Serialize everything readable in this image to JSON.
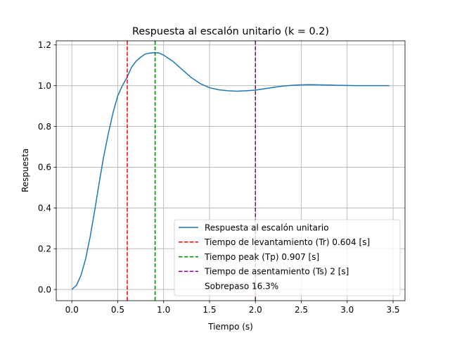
{
  "chart_data": {
    "type": "line",
    "title": "Respuesta al escalón unitario (k = 0.2)",
    "xlabel": "Tiempo (s)",
    "ylabel": "Respuesta",
    "xlim": [
      -0.17,
      3.63
    ],
    "ylim": [
      -0.055,
      1.22
    ],
    "grid": true,
    "legend_position": "lower right",
    "x_ticks": [
      0.0,
      0.5,
      1.0,
      1.5,
      2.0,
      2.5,
      3.0,
      3.5
    ],
    "x_tick_labels": [
      "0.0",
      "0.5",
      "1.0",
      "1.5",
      "2.0",
      "2.5",
      "3.0",
      "3.5"
    ],
    "y_ticks": [
      0.0,
      0.2,
      0.4,
      0.6,
      0.8,
      1.0,
      1.2
    ],
    "y_tick_labels": [
      "0.0",
      "0.2",
      "0.4",
      "0.6",
      "0.8",
      "1.0",
      "1.2"
    ],
    "series": [
      {
        "name": "Respuesta al escalón unitario",
        "color": "#1f77b4",
        "style": "solid",
        "x": [
          0,
          0.05,
          0.1,
          0.15,
          0.2,
          0.25,
          0.3,
          0.35,
          0.4,
          0.45,
          0.5,
          0.55,
          0.6,
          0.65,
          0.7,
          0.75,
          0.8,
          0.85,
          0.9,
          0.95,
          1.0,
          1.1,
          1.2,
          1.3,
          1.4,
          1.5,
          1.6,
          1.7,
          1.8,
          1.9,
          2.0,
          2.1,
          2.2,
          2.3,
          2.4,
          2.5,
          2.6,
          2.7,
          2.8,
          2.9,
          3.0,
          3.1,
          3.2,
          3.3,
          3.46
        ],
        "y": [
          0.0,
          0.02,
          0.07,
          0.15,
          0.26,
          0.39,
          0.53,
          0.66,
          0.77,
          0.87,
          0.95,
          1.0,
          1.04,
          1.09,
          1.12,
          1.14,
          1.155,
          1.16,
          1.162,
          1.16,
          1.15,
          1.12,
          1.08,
          1.04,
          1.01,
          0.99,
          0.98,
          0.975,
          0.973,
          0.975,
          0.978,
          0.985,
          0.992,
          0.998,
          1.002,
          1.004,
          1.005,
          1.004,
          1.003,
          1.002,
          1.001,
          1.0,
          1.0,
          1.0,
          1.0
        ]
      },
      {
        "name": "Tiempo de levantamiento (Tr) 0.604 [s]",
        "color": "#ff0000",
        "style": "dashed",
        "vline": 0.604
      },
      {
        "name": "Tiempo peak (Tp) 0.907 [s]",
        "color": "#008000",
        "style": "dashed",
        "vline": 0.907
      },
      {
        "name": "Tiempo de asentamiento (Ts) 2 [s]",
        "color": "#800080",
        "style": "dashed",
        "vline": 2.0
      },
      {
        "name": "Sobrepaso 16.3%",
        "color": "none",
        "style": "none"
      }
    ]
  }
}
